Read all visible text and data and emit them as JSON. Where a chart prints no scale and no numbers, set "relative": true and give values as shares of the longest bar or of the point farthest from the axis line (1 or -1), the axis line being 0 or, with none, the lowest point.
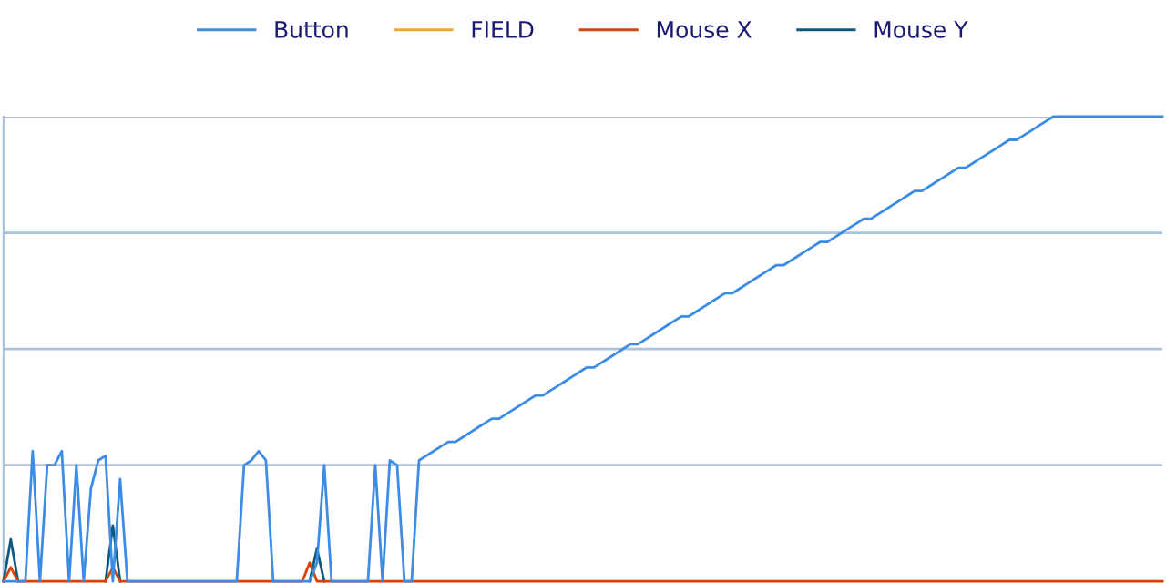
{
  "chart_data": {
    "type": "line",
    "relative": true,
    "legend": "top",
    "ref_lines": [
      {
        "axis": "y",
        "value": 0.25,
        "color": "#a9c3e0"
      },
      {
        "axis": "y",
        "value": 0.5,
        "color": "#a9c3e0"
      },
      {
        "axis": "y",
        "value": 0.75,
        "color": "#a9c3e0"
      },
      {
        "axis": "y",
        "value": 1,
        "color": "#a9c3e0"
      }
    ],
    "categories": [
      null,
      null,
      null,
      null,
      null,
      null,
      null,
      null,
      null,
      null,
      null,
      null,
      null,
      null,
      null,
      null,
      null,
      null,
      null,
      null,
      null,
      null,
      null,
      null,
      null,
      null,
      null,
      null,
      null,
      null,
      null,
      null,
      null,
      null,
      null,
      null,
      null,
      null,
      null,
      null,
      null,
      null,
      null,
      null,
      null,
      null,
      null,
      null,
      null,
      null,
      null,
      null,
      null,
      null,
      null,
      null,
      null,
      null,
      null,
      null,
      null,
      null,
      null,
      null,
      null,
      null,
      null,
      null,
      null,
      null,
      null,
      null,
      null,
      null,
      null,
      null,
      null,
      null,
      null,
      null,
      null,
      null,
      null,
      null,
      null,
      null,
      null,
      null,
      null,
      null,
      null,
      null,
      null,
      null,
      null,
      null,
      null,
      null,
      null,
      null,
      null,
      null,
      null,
      null,
      null,
      null,
      null,
      null,
      null,
      null,
      null,
      null,
      null,
      null,
      null,
      null,
      null,
      null,
      null,
      null,
      null,
      null,
      null,
      null,
      null,
      null,
      null,
      null,
      null,
      null,
      null,
      null,
      null,
      null,
      null,
      null,
      null,
      null,
      null,
      null,
      null,
      null,
      null,
      null,
      null,
      null,
      null,
      null,
      null,
      null,
      null,
      null,
      null,
      null,
      null,
      null,
      null,
      null,
      null,
      null
    ],
    "series": [
      {
        "name": "Button",
        "color": "#3c8ce6",
        "values": [
          0,
          0,
          0,
          0,
          0.28,
          0,
          0.25,
          0.25,
          0.28,
          0,
          0.25,
          0,
          0.2,
          0.26,
          0.27,
          0,
          0.22,
          0,
          0,
          0,
          0,
          0,
          0,
          0,
          0,
          0,
          0,
          0,
          0,
          0,
          0,
          0,
          0,
          0.25,
          0.26,
          0.28,
          0.26,
          0,
          0,
          0,
          0,
          0,
          0,
          0.04,
          0.25,
          0,
          0,
          0,
          0,
          0,
          0,
          0.25,
          0,
          0.26,
          0.25,
          0,
          0,
          0.26,
          0.27,
          0.28,
          0.29,
          0.3,
          0.3,
          0.31,
          0.32,
          0.33,
          0.34,
          0.35,
          0.35,
          0.36,
          0.37,
          0.38,
          0.39,
          0.4,
          0.4,
          0.41,
          0.42,
          0.43,
          0.44,
          0.45,
          0.46,
          0.46,
          0.47,
          0.48,
          0.49,
          0.5,
          0.51,
          0.51,
          0.52,
          0.53,
          0.54,
          0.55,
          0.56,
          0.57,
          0.57,
          0.58,
          0.59,
          0.6,
          0.61,
          0.62,
          0.62,
          0.63,
          0.64,
          0.65,
          0.66,
          0.67,
          0.68,
          0.68,
          0.69,
          0.7,
          0.71,
          0.72,
          0.73,
          0.73,
          0.74,
          0.75,
          0.76,
          0.77,
          0.78,
          0.78,
          0.79,
          0.8,
          0.81,
          0.82,
          0.83,
          0.84,
          0.84,
          0.85,
          0.86,
          0.87,
          0.88,
          0.89,
          0.89,
          0.9,
          0.91,
          0.92,
          0.93,
          0.94,
          0.95,
          0.95,
          0.96,
          0.97,
          0.98,
          0.99,
          1,
          1,
          1,
          1,
          1,
          1,
          1,
          1,
          1,
          1,
          1,
          1,
          1,
          1,
          1,
          1
        ]
      },
      {
        "name": "FIELD",
        "color": "#f7a823",
        "values": [
          null,
          null,
          null,
          null,
          null,
          null,
          null,
          null,
          null,
          null,
          null,
          null,
          null,
          null,
          null,
          null,
          null,
          null,
          null,
          null,
          null,
          null,
          null,
          null,
          null,
          null,
          null,
          null,
          null,
          null,
          null,
          null,
          null,
          null,
          null,
          null,
          null,
          null,
          null,
          null,
          null,
          null,
          null,
          null,
          null,
          null,
          null,
          null,
          null,
          null,
          null,
          null,
          null,
          null,
          null,
          null,
          null,
          null,
          null,
          null,
          null,
          null,
          null,
          null,
          null,
          null,
          null,
          null,
          null,
          null,
          null,
          null,
          null,
          null,
          null,
          null,
          null,
          null,
          null,
          null,
          null,
          null,
          null,
          null,
          null,
          null,
          null,
          null,
          null,
          null,
          null,
          null,
          null,
          null,
          null,
          null,
          null,
          null,
          null,
          null,
          null,
          null,
          null,
          null,
          null,
          null,
          null,
          null,
          null,
          null,
          null,
          null,
          null,
          null,
          null,
          null,
          null,
          null,
          null,
          null,
          null,
          null,
          null,
          null,
          null,
          null,
          null,
          null,
          null,
          null,
          null,
          null,
          null,
          null,
          null,
          null,
          null,
          null,
          null,
          null,
          null,
          null,
          null,
          null,
          null,
          null,
          null,
          null,
          null,
          null,
          null,
          null,
          null,
          null,
          null,
          null,
          null,
          null,
          null,
          null
        ]
      },
      {
        "name": "Mouse X",
        "color": "#d9400a",
        "values": [
          0,
          0.03,
          0,
          0,
          0,
          0,
          0,
          0,
          0,
          0,
          0,
          0,
          0,
          0,
          0,
          0.03,
          0,
          0,
          0,
          0,
          0,
          0,
          0,
          0,
          0,
          0,
          0,
          0,
          0,
          0,
          0,
          0,
          0,
          0,
          0,
          0,
          0,
          0,
          0,
          0,
          0,
          0,
          0.04,
          0,
          0,
          0,
          0,
          0,
          0,
          0,
          0,
          0,
          0,
          0,
          0,
          0,
          0,
          0,
          0,
          0,
          0,
          0,
          0,
          0,
          0,
          0,
          0,
          0,
          0,
          0,
          0,
          0,
          0,
          0,
          0,
          0,
          0,
          0,
          0,
          0,
          0,
          0,
          0,
          0,
          0,
          0,
          0,
          0,
          0,
          0,
          0,
          0,
          0,
          0,
          0,
          0,
          0,
          0,
          0,
          0,
          0,
          0,
          0,
          0,
          0,
          0,
          0,
          0,
          0,
          0,
          0,
          0,
          0,
          0,
          0,
          0,
          0,
          0,
          0,
          0,
          0,
          0,
          0,
          0,
          0,
          0,
          0,
          0,
          0,
          0,
          0,
          0,
          0,
          0,
          0,
          0,
          0,
          0,
          0,
          0,
          0,
          0,
          0,
          0,
          0,
          0,
          0,
          0,
          0,
          0,
          0,
          0,
          0,
          0,
          0,
          0,
          0,
          0,
          0,
          0
        ]
      },
      {
        "name": "Mouse Y",
        "color": "#0a5a7f",
        "values": [
          0,
          0.09,
          0,
          null,
          null,
          null,
          null,
          null,
          null,
          null,
          null,
          null,
          null,
          null,
          0,
          0.12,
          0,
          null,
          null,
          null,
          null,
          null,
          null,
          null,
          null,
          null,
          null,
          null,
          null,
          null,
          null,
          null,
          null,
          null,
          null,
          null,
          null,
          null,
          null,
          null,
          null,
          null,
          0,
          0.07,
          0,
          null,
          null,
          null,
          null,
          null,
          null,
          null,
          null,
          null,
          null,
          null,
          null,
          null,
          null,
          null,
          null,
          null,
          null,
          null,
          null,
          null,
          null,
          null,
          null,
          null,
          null,
          null,
          null,
          null,
          null,
          null,
          null,
          null,
          null,
          null,
          null,
          null,
          null,
          null,
          null,
          null,
          null,
          null,
          null,
          null,
          null,
          null,
          null,
          null,
          null,
          null,
          null,
          null,
          null,
          null,
          null,
          null,
          null,
          null,
          null,
          null,
          null,
          null,
          null,
          null,
          null,
          null,
          null,
          null,
          null,
          null,
          null,
          null,
          null,
          null,
          null,
          null,
          null,
          null,
          null,
          null,
          null,
          null,
          null,
          null,
          null,
          null,
          null,
          null,
          null,
          null,
          null,
          null,
          null,
          null,
          null,
          null,
          null,
          null,
          null,
          null,
          null,
          null,
          null,
          null,
          null,
          null,
          null,
          null,
          null,
          null,
          null,
          null,
          null,
          null
        ]
      }
    ]
  }
}
